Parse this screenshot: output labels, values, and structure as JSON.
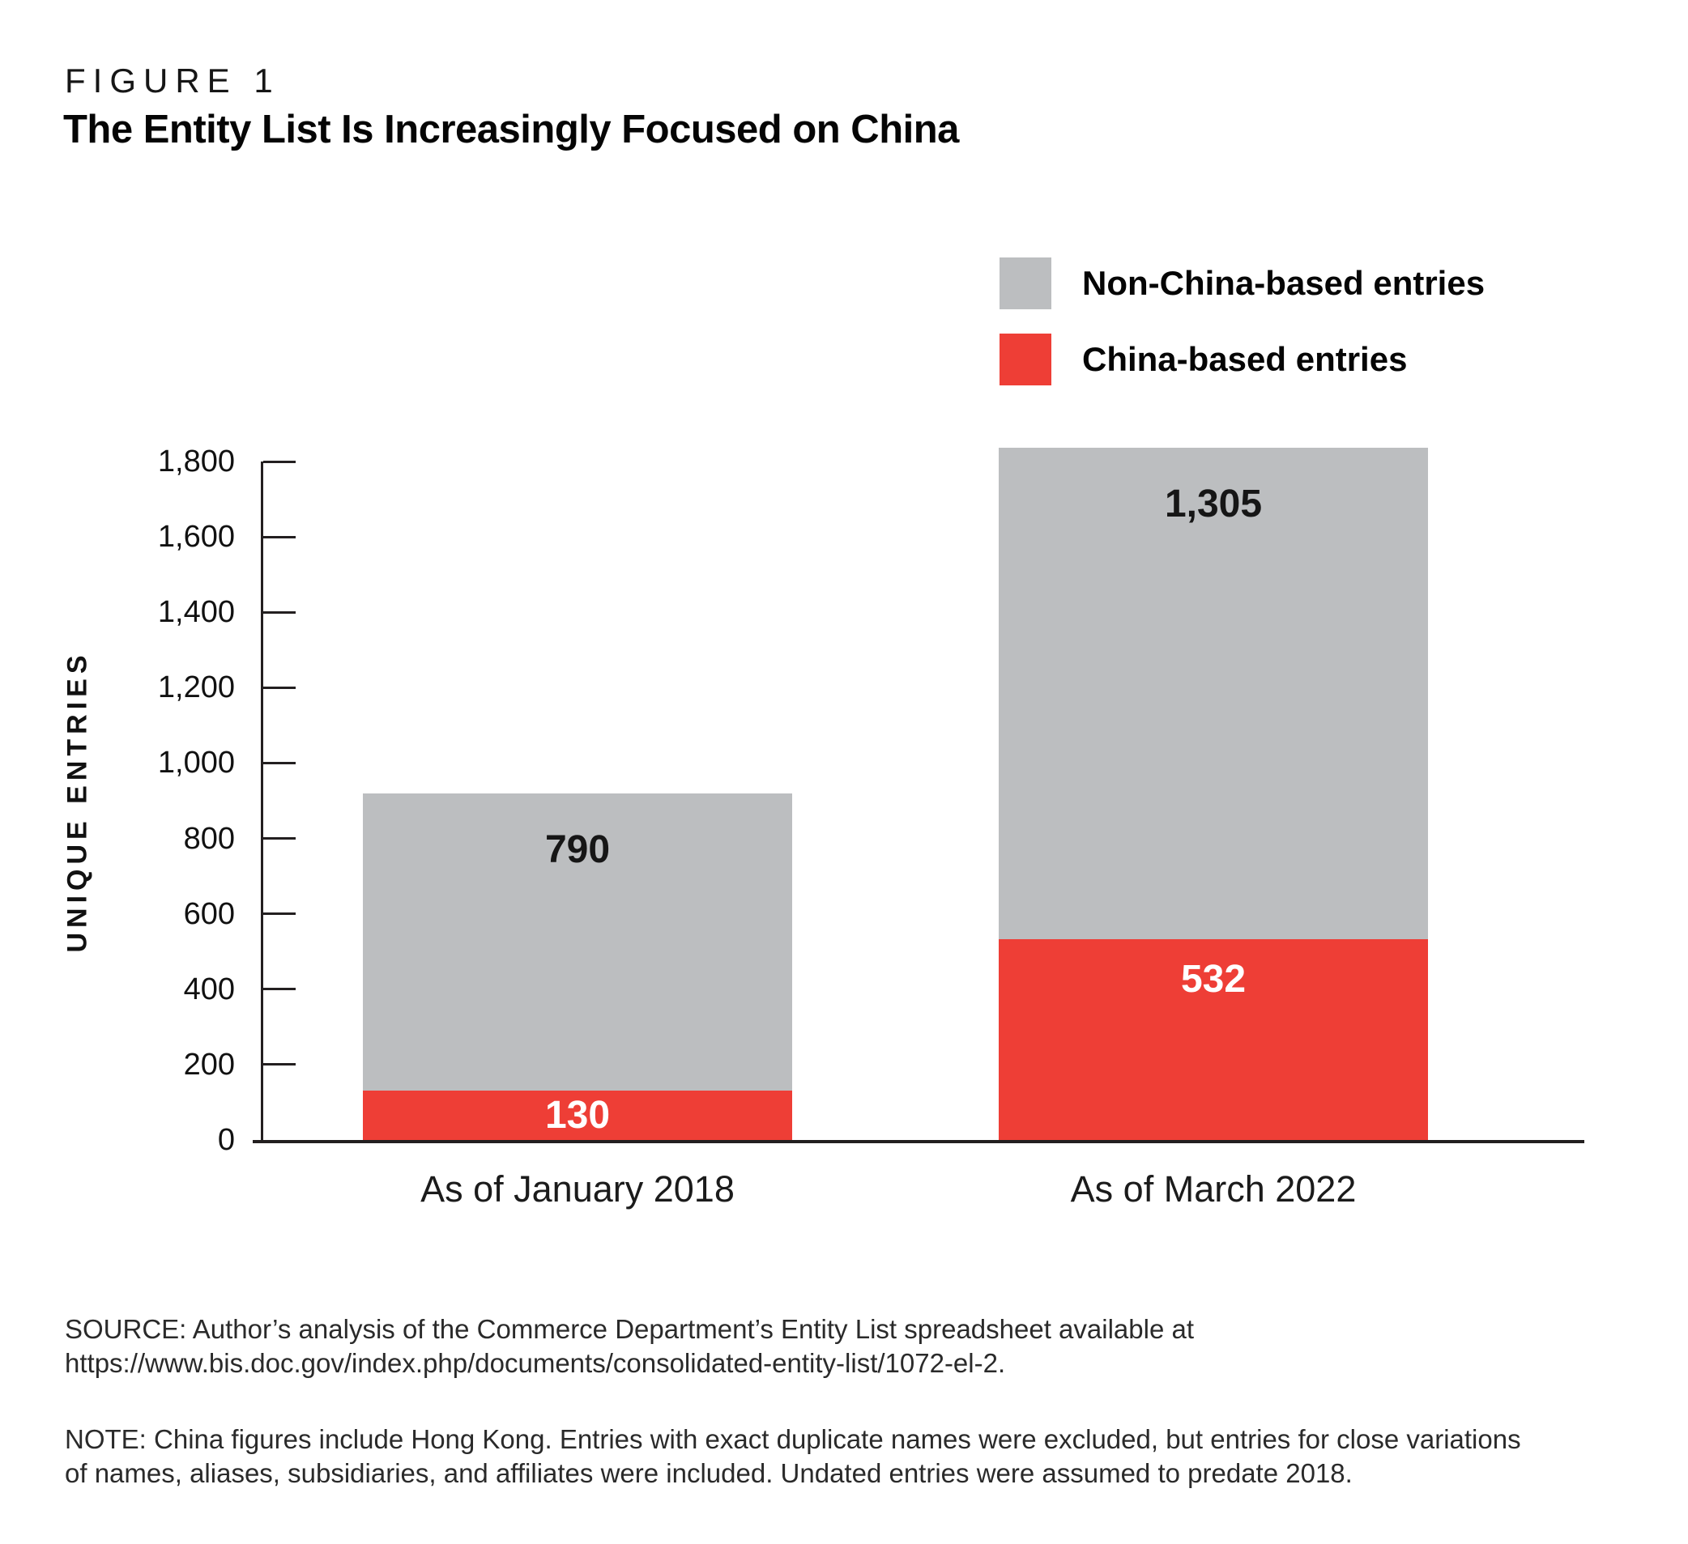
{
  "figure_label": "FIGURE 1",
  "title": "The Entity List Is Increasingly Focused on China",
  "source_lines": [
    "SOURCE: Author’s analysis of the Commerce Department’s Entity List spreadsheet available at",
    "https://www.bis.doc.gov/index.php/documents/consolidated-entity-list/1072-el-2."
  ],
  "note_lines": [
    "NOTE: China figures include Hong Kong. Entries with exact duplicate names were excluded, but entries for close variations",
    "of names, aliases, subsidiaries, and affiliates were included. Undated entries were assumed to predate 2018."
  ],
  "colors": {
    "non_china": "#bcbec0",
    "china": "#ee3e36",
    "axis": "#231f20"
  },
  "chart_data": {
    "type": "bar",
    "stacked": true,
    "title": "The Entity List Is Increasingly Focused on China",
    "categories": [
      "As of January 2018",
      "As of March 2022"
    ],
    "series": [
      {
        "name": "China-based entries",
        "values": [
          130,
          532
        ],
        "color": "#ee3e36",
        "label_color": "#ffffff"
      },
      {
        "name": "Non-China-based entries",
        "values": [
          790,
          1305
        ],
        "color": "#bcbec0",
        "label_color": "#161616"
      }
    ],
    "ylabel": "UNIQUE ENTRIES",
    "ylim": [
      0,
      1800
    ],
    "ytick_step": 200,
    "grid": false,
    "legend_position": "top-right",
    "bar_value_labels": true
  }
}
